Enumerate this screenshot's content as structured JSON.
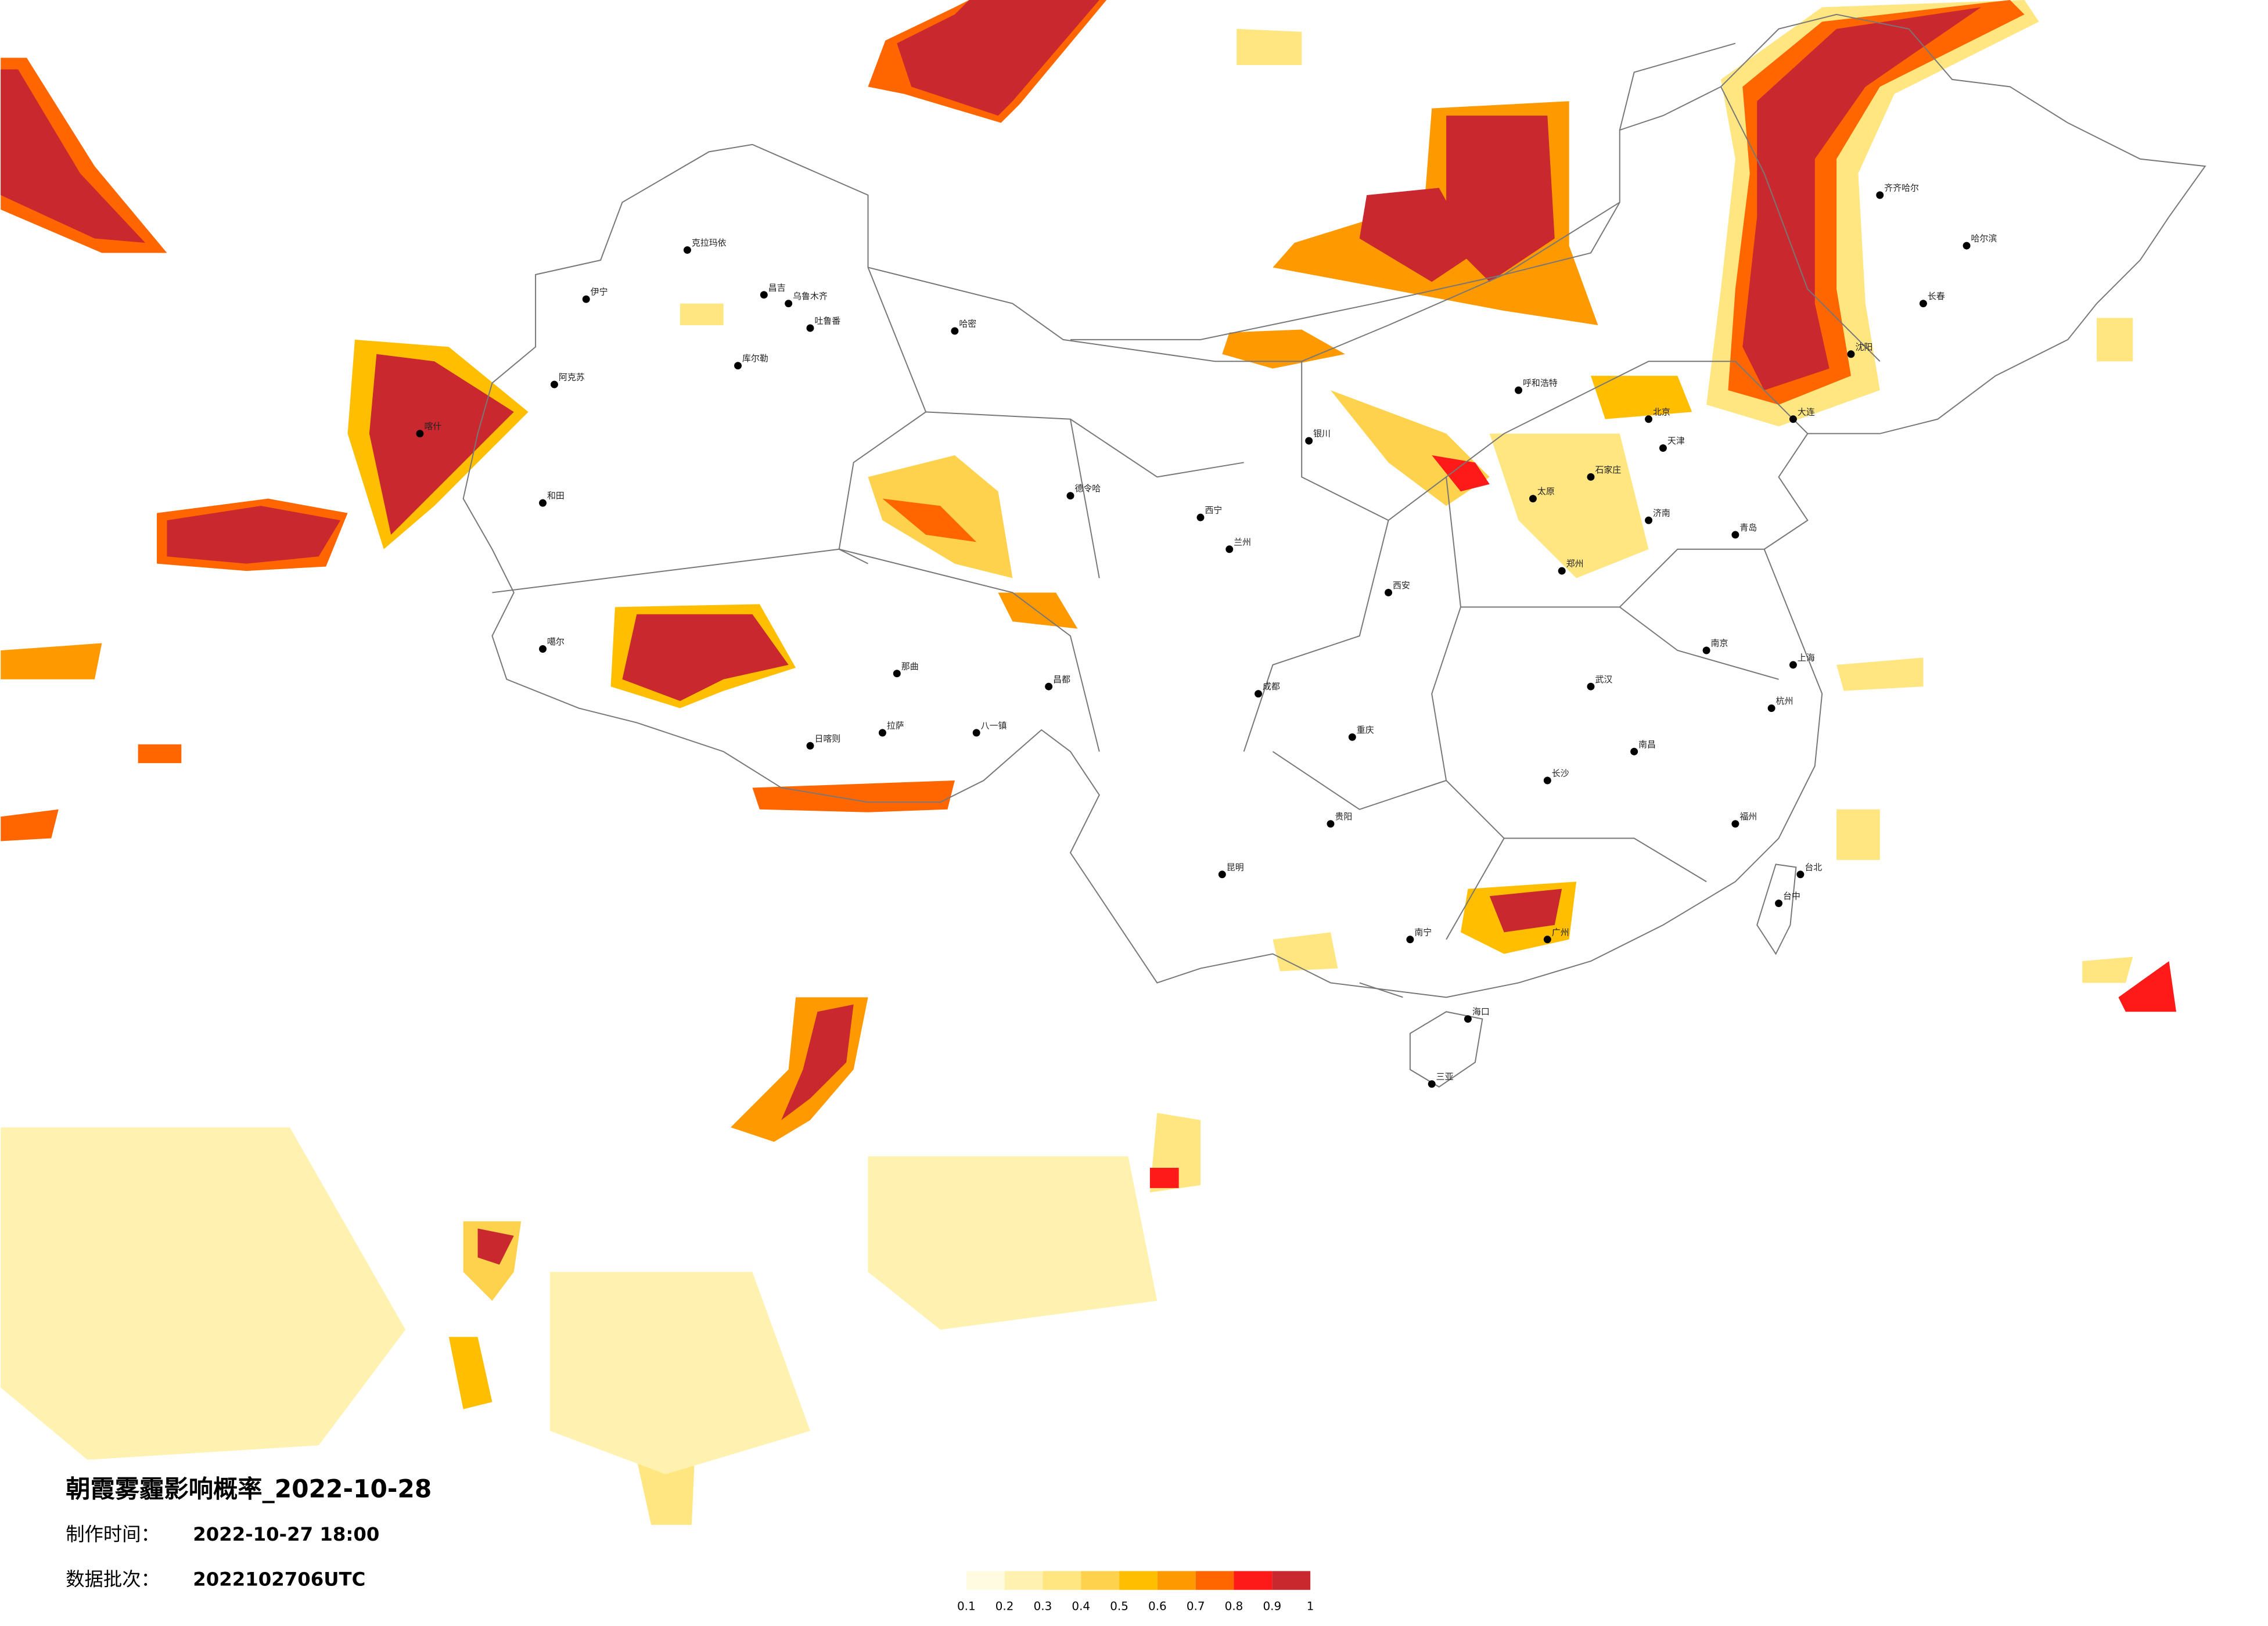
{
  "title": "朝霞雾霾影响概率_2022-10-28",
  "issue": {
    "label": "制作时间：",
    "value": "2022-10-27 18:00"
  },
  "batch": {
    "label": "数据批次：",
    "value": "2022102706UTC"
  },
  "legend": {
    "colors": [
      "#fffbe0",
      "#fff2b0",
      "#ffe680",
      "#ffd24d",
      "#ffbf00",
      "#ff9900",
      "#ff6600",
      "#ff1a1a",
      "#c8282e"
    ],
    "ticks": [
      0.1,
      0.2,
      0.3,
      0.4,
      0.5,
      0.6,
      0.7,
      0.8,
      0.9,
      1
    ]
  },
  "cities": [
    "克拉玛依",
    "伊宁",
    "昌吉",
    "乌鲁木齐",
    "吐鲁番",
    "哈密",
    "库尔勒",
    "阿克苏",
    "和田",
    "喀什",
    "噶尔",
    "日喀则",
    "拉萨",
    "那曲",
    "八一镇",
    "昌都",
    "德令哈",
    "西宁",
    "兰州",
    "银川",
    "呼和浩特",
    "北京",
    "天津",
    "石家庄",
    "太原",
    "西安",
    "郑州",
    "济南",
    "青岛",
    "南京",
    "上海",
    "杭州",
    "武汉",
    "长沙",
    "重庆",
    "成都",
    "贵阳",
    "昆明",
    "南宁",
    "广州",
    "福州",
    "南昌",
    "海口",
    "三亚",
    "台北",
    "台中",
    "哈尔滨",
    "长春",
    "沈阳",
    "大连",
    "齐齐哈尔"
  ]
}
